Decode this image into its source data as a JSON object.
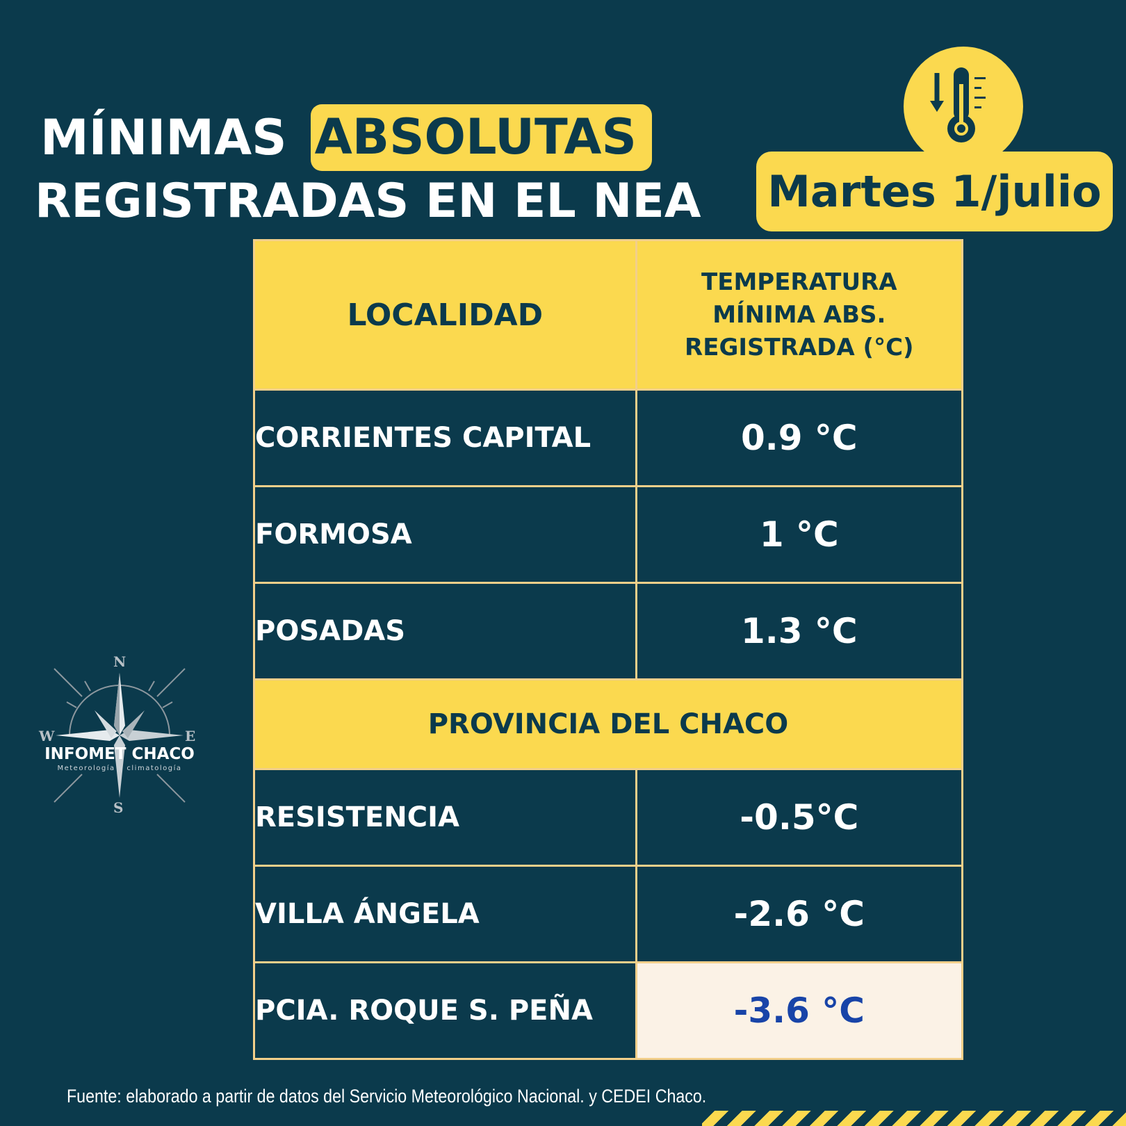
{
  "header": {
    "title_word1": "MÍNIMAS",
    "title_highlight": "ABSOLUTAS",
    "title_line2": "REGISTRADAS EN EL NEA",
    "date": "Martes 1/julio",
    "icon": "thermometer-down-icon"
  },
  "table": {
    "col_localidad": "LOCALIDAD",
    "col_temp_line1": "TEMPERATURA",
    "col_temp_line2": "MÍNIMA ABS.",
    "col_temp_line3": "REGISTRADA (°C)",
    "rows_nea": [
      {
        "localidad": "CORRIENTES CAPITAL",
        "temp": "0.9 °C"
      },
      {
        "localidad": "FORMOSA",
        "temp": "1 °C"
      },
      {
        "localidad": "POSADAS",
        "temp": "1.3 °C"
      }
    ],
    "section_chaco": "PROVINCIA DEL CHACO",
    "rows_chaco": [
      {
        "localidad": "RESISTENCIA",
        "temp": "-0.5°C"
      },
      {
        "localidad": "VILLA ÁNGELA",
        "temp": "-2.6 °C"
      },
      {
        "localidad": "PCIA. ROQUE S. PEÑA",
        "temp": "-3.6 °C"
      }
    ]
  },
  "logo": {
    "name": "INFOMET CHACO",
    "subtitle": "Meteorología y climatología",
    "n": "N",
    "s": "S",
    "w": "W",
    "e": "E"
  },
  "footer": {
    "source": "Fuente: elaborado a partir de datos del Servicio Meteorológico Nacional. y CEDEI Chaco."
  },
  "colors": {
    "background": "#0b3a4c",
    "accent_yellow": "#fbd94f",
    "border": "#f2cf8a",
    "highlight_cell": "#fbf2e6",
    "highlight_text": "#1844a8"
  }
}
